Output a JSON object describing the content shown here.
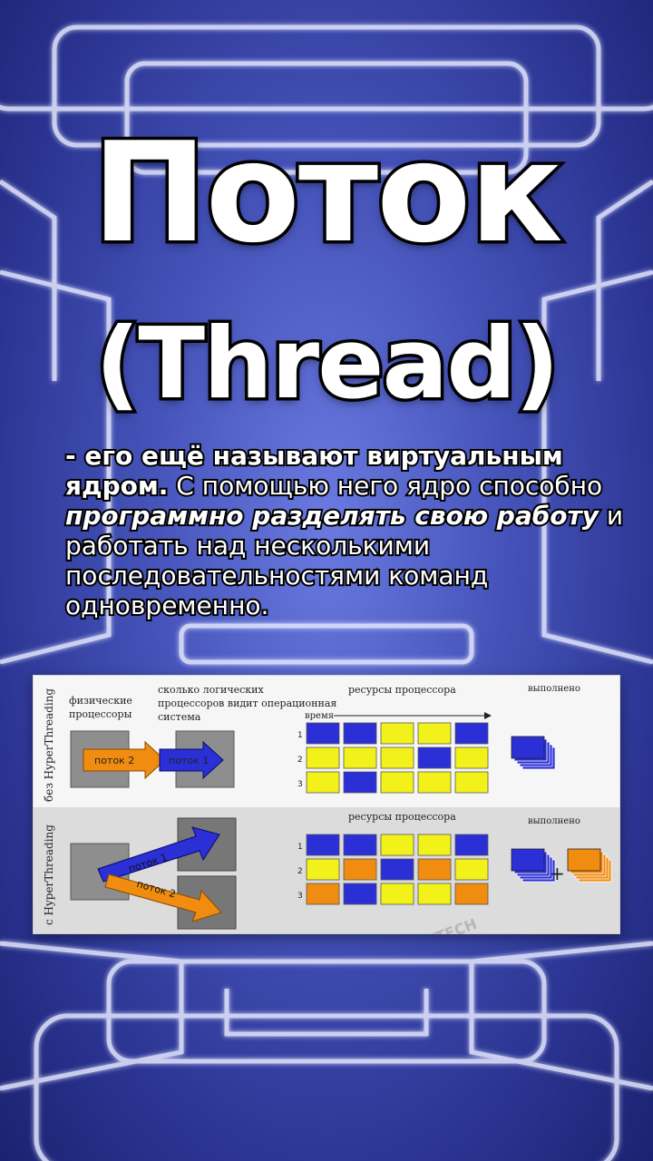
{
  "title": "Поток",
  "subtitle": "(Thread)",
  "description": {
    "part1": "- его ещё называют виртуальным ядром.",
    "part2": " С помощью него ядро способно ",
    "part3": "программно разделять свою работу",
    "part4": " и работать над несколькими последовательностями команд одновременно."
  },
  "diagram": {
    "row_labels": {
      "without": "без HyperThreading",
      "with": "с HyperThreading"
    },
    "headers": {
      "physical": "физические процессоры",
      "logical": "сколько логических процессоров видит операционная система",
      "resources": "ресурсы процессора",
      "done": "выполнено",
      "time": "время"
    },
    "thread1": "поток 1",
    "thread2": "поток 2",
    "plus": "+",
    "row_numbers": [
      "1",
      "2",
      "3"
    ],
    "grid_without": [
      [
        "B",
        "B",
        "Y",
        "Y",
        "B"
      ],
      [
        "Y",
        "Y",
        "Y",
        "B",
        "Y"
      ],
      [
        "Y",
        "B",
        "Y",
        "Y",
        "Y"
      ]
    ],
    "grid_with": [
      [
        "B",
        "B",
        "Y",
        "Y",
        "B"
      ],
      [
        "Y",
        "O",
        "B",
        "O",
        "Y"
      ],
      [
        "O",
        "B",
        "Y",
        "Y",
        "O"
      ]
    ],
    "colors": {
      "B": "#2b2fd6",
      "Y": "#f2f21a",
      "O": "#f08c10",
      "gray": "#8e8e8e"
    },
    "watermark": "XTECH"
  }
}
